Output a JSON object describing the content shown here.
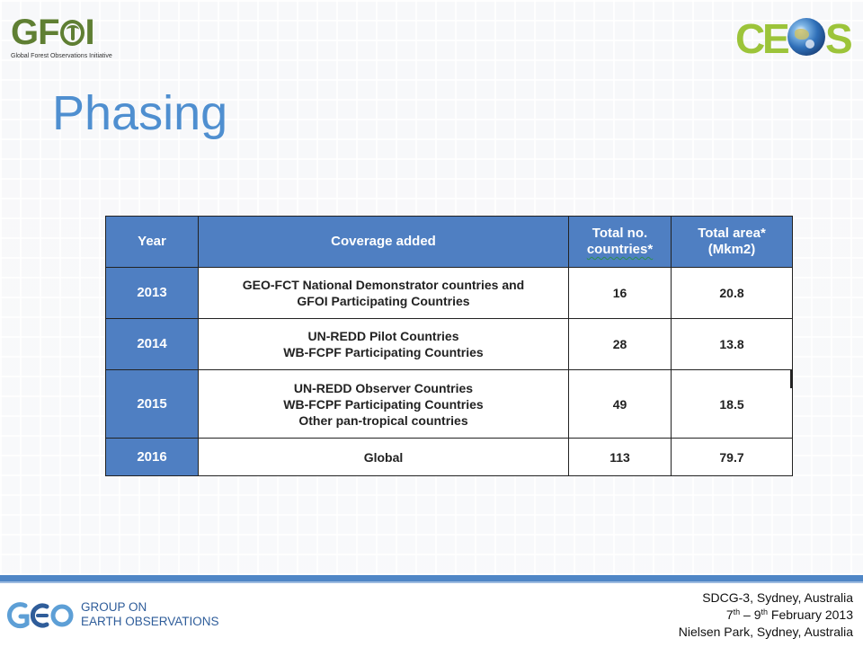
{
  "header": {
    "gfoi_logo": {
      "word_prefix": "GF",
      "word_suffix": "I",
      "subtitle": "Global Forest Observations Initiative"
    },
    "ceos_logo": {
      "letters": [
        "C",
        "E",
        "S"
      ]
    }
  },
  "slide": {
    "title": "Phasing"
  },
  "table": {
    "headers": {
      "year": "Year",
      "coverage": "Coverage added",
      "countries_line1": "Total no.",
      "countries_line2": "countries*",
      "area_line1": "Total area*",
      "area_line2": "(Mkm2)"
    },
    "rows": [
      {
        "year": "2013",
        "coverage": [
          "GEO-FCT National Demonstrator countries and",
          "GFOI Participating Countries"
        ],
        "countries": "16",
        "area": "20.8"
      },
      {
        "year": "2014",
        "coverage": [
          "UN-REDD Pilot Countries",
          "WB-FCPF Participating Countries"
        ],
        "countries": "28",
        "area": "13.8"
      },
      {
        "year": "2015",
        "coverage": [
          "UN-REDD Observer Countries",
          "WB-FCPF Participating Countries",
          "Other pan-tropical countries"
        ],
        "countries": "49",
        "area": "18.5"
      },
      {
        "year": "2016",
        "coverage": [
          "Global"
        ],
        "countries": "113",
        "area": "79.7"
      }
    ]
  },
  "footer": {
    "geo_logo": {
      "line1": "GROUP ON",
      "line2": "EARTH OBSERVATIONS"
    },
    "event": {
      "line1": "SDCG-3, Sydney, Australia",
      "date_start_day": "7",
      "date_start_suffix": "th",
      "date_sep": " – ",
      "date_end_day": "9",
      "date_end_suffix": "th",
      "date_rest": " February 2013",
      "line3": "Nielsen Park, Sydney, Australia"
    }
  },
  "colors": {
    "title_blue": "#4f8fd0",
    "table_header_blue": "#4f7fc2",
    "gfoi_green": "#5f7f33",
    "ceos_green": "#9cc43a",
    "footer_bar_blue": "#4f86c6",
    "geo_blue": "#2f5d9a"
  },
  "icons": {
    "gfoi": "gfoi-logo-icon",
    "ceos_globe": "earth-globe-icon",
    "geo": "geo-logo-icon"
  }
}
